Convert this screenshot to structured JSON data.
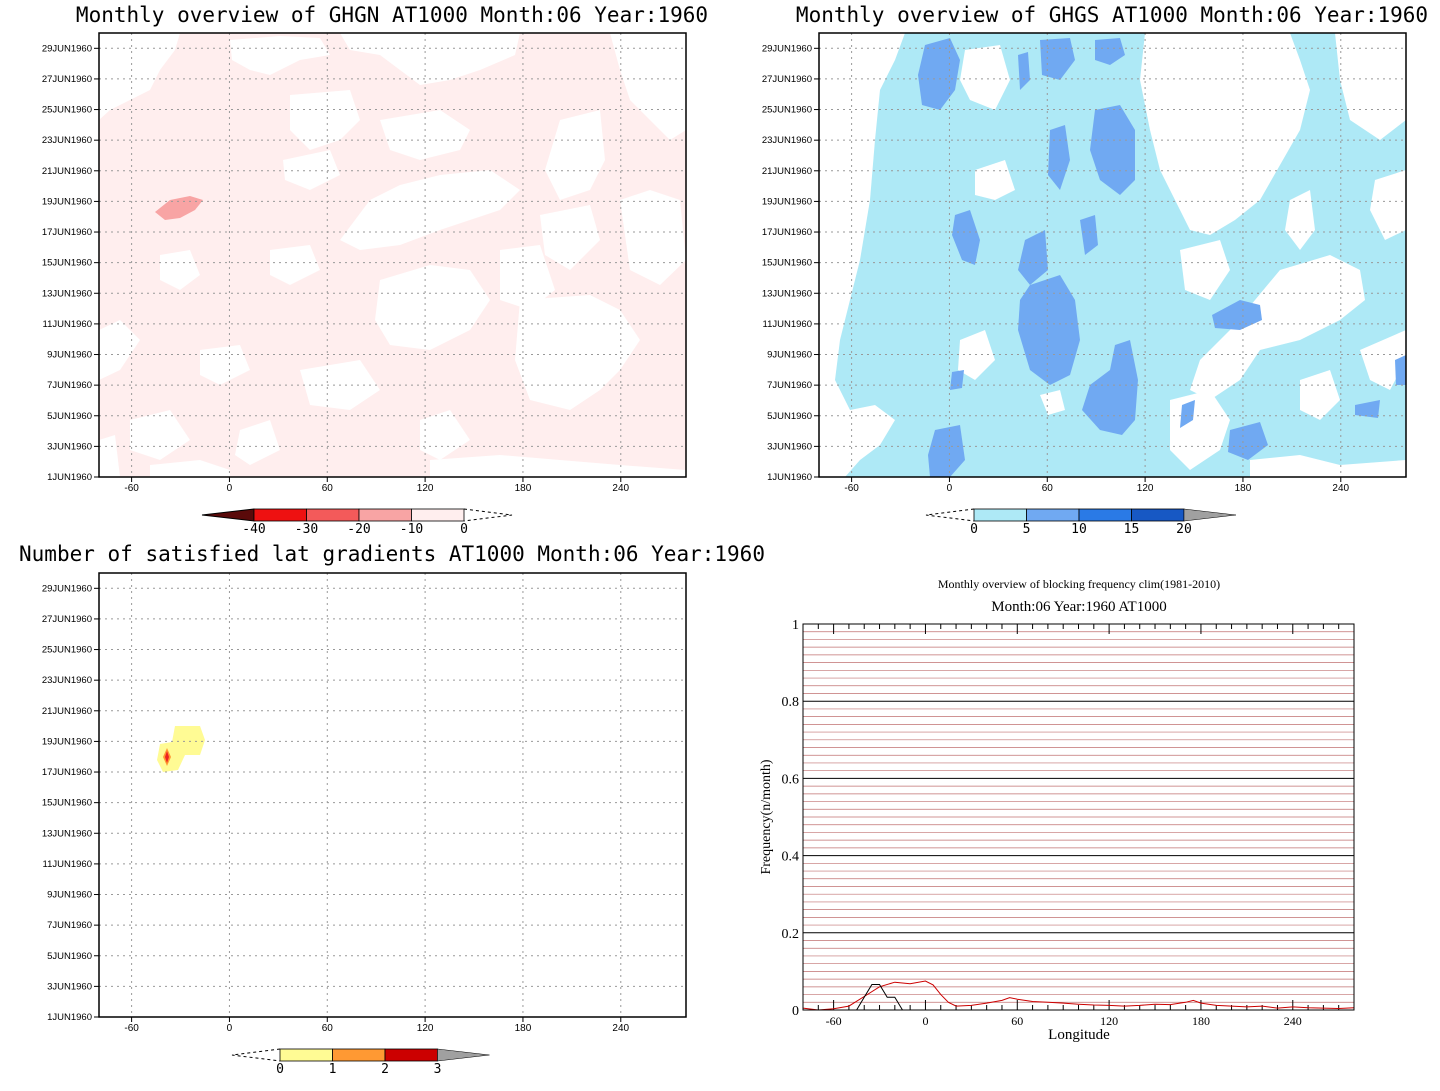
{
  "panels": [
    {
      "title": "Monthly overview of GHGN AT1000 Month:06 Year:1960",
      "fill": "#ffeeee",
      "colorbar": {
        "labels": [
          "-40",
          "-30",
          "-20",
          "-10",
          "0"
        ],
        "colors": [
          "#5a0a0a",
          "#ee1111",
          "#f35a5a",
          "#f8a4a4",
          "#ffeeee"
        ]
      }
    },
    {
      "title": "Monthly overview of GHGS AT1000 Month:06 Year:1960",
      "fill": "#aee9f6",
      "patch": "#70a9f2",
      "colorbar": {
        "labels": [
          "0",
          "5",
          "10",
          "15",
          "20"
        ],
        "colors": [
          "#aee9f6",
          "#70a9f2",
          "#2a7ae6",
          "#1758c4",
          "#a0a0a0"
        ]
      }
    },
    {
      "title": "Number of satisfied lat gradients AT1000 Month:06 Year:1960",
      "colorbar": {
        "labels": [
          "0",
          "1",
          "2",
          "3"
        ],
        "colors": [
          "#fffb94",
          "#ff9933",
          "#cc0000",
          "#a0a0a0"
        ]
      }
    }
  ],
  "y_tick_labels": [
    "1JUN1960",
    "3JUN1960",
    "5JUN1960",
    "7JUN1960",
    "9JUN1960",
    "11JUN1960",
    "13JUN1960",
    "15JUN1960",
    "17JUN1960",
    "19JUN1960",
    "21JUN1960",
    "23JUN1960",
    "25JUN1960",
    "27JUN1960",
    "29JUN1960"
  ],
  "x_tick_labels": [
    "-60",
    "0",
    "60",
    "120",
    "180",
    "240"
  ],
  "chart_data": [
    {
      "type": "heatmap",
      "title": "Monthly overview of GHGN AT1000 Month:06 Year:1960",
      "x_range": [
        -80,
        280
      ],
      "y_range": [
        "1JUN1960",
        "30JUN1960"
      ],
      "levels": [
        -40,
        -30,
        -20,
        -10,
        0
      ],
      "grid": true
    },
    {
      "type": "heatmap",
      "title": "Monthly overview of GHGS AT1000 Month:06 Year:1960",
      "x_range": [
        -80,
        280
      ],
      "y_range": [
        "1JUN1960",
        "30JUN1960"
      ],
      "levels": [
        0,
        5,
        10,
        15,
        20
      ],
      "grid": true
    },
    {
      "type": "heatmap",
      "title": "Number of satisfied lat gradients AT1000 Month:06 Year:1960",
      "x_range": [
        -80,
        280
      ],
      "y_range": [
        "1JUN1960",
        "30JUN1960"
      ],
      "levels": [
        0,
        1,
        2,
        3
      ],
      "grid": true,
      "cells": [
        {
          "lon": -37,
          "date": "18JUN1960",
          "value": 1
        },
        {
          "lon": -25,
          "date": "19JUN1960",
          "value": 1
        },
        {
          "lon": -37,
          "date": "18JUN1960",
          "value": 2
        }
      ]
    },
    {
      "type": "line",
      "title": "Monthly overview of blocking frequency clim(1981-2010)",
      "subtitle": "Month:06 Year:1960  AT1000",
      "xlabel": "Longitude",
      "ylabel": "Frequency(n/month)",
      "xlim": [
        -80,
        280
      ],
      "ylim": [
        0,
        1
      ],
      "x_ticks": [
        -60,
        0,
        60,
        120,
        180,
        240
      ],
      "y_ticks": [
        0,
        0.2,
        0.4,
        0.6,
        0.8,
        1
      ],
      "grid": true,
      "series": [
        {
          "color": "#cc0000",
          "x": [
            -80,
            -70,
            -60,
            -50,
            -40,
            -30,
            -20,
            -10,
            0,
            5,
            10,
            15,
            20,
            30,
            40,
            50,
            55,
            60,
            70,
            80,
            90,
            100,
            110,
            120,
            130,
            140,
            150,
            160,
            170,
            175,
            180,
            190,
            200,
            210,
            220,
            230,
            240,
            250,
            260,
            270,
            280
          ],
          "y": [
            0.005,
            0,
            0.003,
            0.01,
            0.035,
            0.06,
            0.072,
            0.068,
            0.075,
            0.065,
            0.04,
            0.02,
            0.01,
            0.012,
            0.018,
            0.025,
            0.032,
            0.028,
            0.022,
            0.02,
            0.018,
            0.015,
            0.013,
            0.012,
            0.01,
            0.012,
            0.015,
            0.014,
            0.02,
            0.025,
            0.018,
            0.012,
            0.01,
            0.008,
            0.01,
            0.005,
            0.008,
            0.006,
            0.005,
            0.004,
            0.006
          ]
        },
        {
          "color": "#000000",
          "x": [
            -80,
            -50,
            -45,
            -40,
            -35,
            -30,
            -25,
            -20,
            -15,
            -10,
            280
          ],
          "y": [
            0,
            0,
            0,
            0.033,
            0.066,
            0.066,
            0.033,
            0.033,
            0,
            0,
            0
          ]
        }
      ]
    }
  ]
}
